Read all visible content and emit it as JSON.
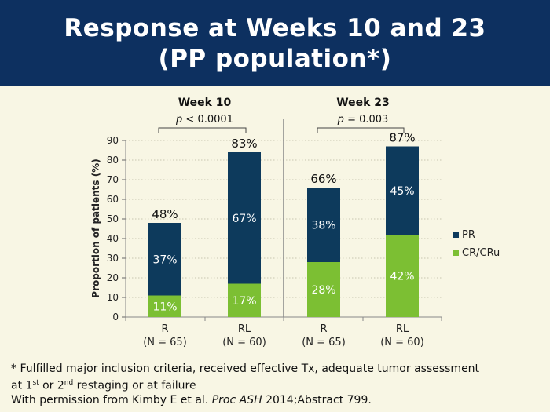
{
  "slide": {
    "title_line1": "Response at Weeks 10 and 23",
    "title_line2": "(PP population*)",
    "footnote_line1": "* Fulfilled major inclusion criteria, received effective Tx, adequate tumor assessment",
    "footnote_line2_a": "at 1",
    "footnote_line2_sup1": "st",
    "footnote_line2_b": " or 2",
    "footnote_line2_sup2": "nd",
    "footnote_line2_c": " restaging or at failure",
    "footnote_line3_a": "With permission from Kimby E et al. ",
    "footnote_line3_italic": "Proc ASH",
    "footnote_line3_b": " 2014;Abstract 799."
  },
  "colors": {
    "title_bg": "#0d3060",
    "background": "#f8f6e4",
    "pr": "#0d3a5c",
    "cr": "#7cbf33"
  },
  "chart_data": {
    "type": "bar",
    "stacked": true,
    "ylabel": "Proportion of patients (%)",
    "ylim": [
      0,
      90
    ],
    "yticks": [
      0,
      10,
      20,
      30,
      40,
      50,
      60,
      70,
      80,
      90
    ],
    "grid": true,
    "legend_position": "right",
    "groups": [
      {
        "label": "Week 10",
        "p_prefix": "p",
        "p_rest": " < 0.0001"
      },
      {
        "label": "Week 23",
        "p_prefix": "p",
        "p_rest": " = 0.003"
      }
    ],
    "categories": [
      {
        "name": "R",
        "n": "(N = 65)"
      },
      {
        "name": "RL",
        "n": "(N = 60)"
      },
      {
        "name": "R",
        "n": "(N = 65)"
      },
      {
        "name": "RL",
        "n": "(N = 60)"
      }
    ],
    "series": [
      {
        "name": "CR/CRu",
        "values": [
          11,
          17,
          28,
          42
        ],
        "labels": [
          "11%",
          "17%",
          "28%",
          "42%"
        ]
      },
      {
        "name": "PR",
        "values": [
          37,
          67,
          38,
          45
        ],
        "labels": [
          "37%",
          "67%",
          "38%",
          "45%"
        ]
      }
    ],
    "totals": [
      48,
      83,
      66,
      87
    ],
    "total_labels": [
      "48%",
      "83%",
      "66%",
      "87%"
    ],
    "legend": [
      "PR",
      "CR/CRu"
    ]
  }
}
